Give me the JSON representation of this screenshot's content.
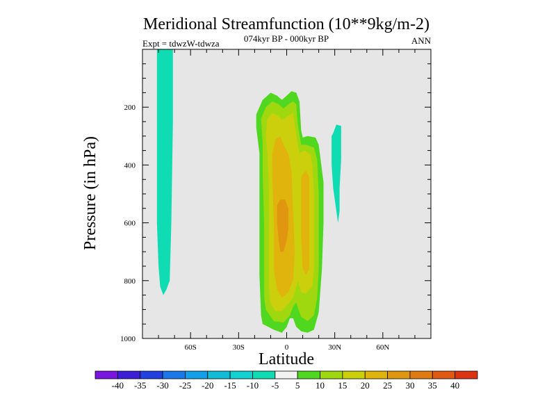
{
  "chart_data": {
    "type": "contour",
    "title": "Meridional Streamfunction (10**9kg/m-2)",
    "subtitle_center": "074kyr BP - 000kyr BP",
    "subtitle_left": "Expt = tdwzW-tdwza",
    "subtitle_right": "ANN",
    "xlabel": "Latitude",
    "ylabel": "Pressure (in hPa)",
    "xlim": [
      -90,
      90
    ],
    "ylim": [
      1000,
      0
    ],
    "y_inverted": true,
    "x_ticks": [
      {
        "value": -60,
        "label": "60S"
      },
      {
        "value": -30,
        "label": "30S"
      },
      {
        "value": 0,
        "label": "0"
      },
      {
        "value": 30,
        "label": "30N"
      },
      {
        "value": 60,
        "label": "60N"
      }
    ],
    "y_ticks": [
      {
        "value": 200,
        "label": "200"
      },
      {
        "value": 400,
        "label": "400"
      },
      {
        "value": 600,
        "label": "600"
      },
      {
        "value": 800,
        "label": "800"
      },
      {
        "value": 1000,
        "label": "1000"
      }
    ],
    "background_color": "#e6e6e6",
    "colorbar": {
      "colors": [
        "#7a16e0",
        "#3c1ed6",
        "#2040e0",
        "#1a78e8",
        "#14a0e8",
        "#10bcd8",
        "#14d2d2",
        "#10dcb4",
        "#f2f2f2",
        "#50d820",
        "#a0d810",
        "#ccd00c",
        "#e0b40c",
        "#e09610",
        "#e07a12",
        "#e05a14",
        "#dc3412"
      ],
      "labels": [
        "-40",
        "-35",
        "-30",
        "-25",
        "-20",
        "-15",
        "-10",
        "-5",
        "5",
        "10",
        "15",
        "20",
        "25",
        "30",
        "35",
        "40"
      ]
    },
    "contours": [
      {
        "level_band": "-10 to -5",
        "color": "#10dcb4",
        "description": "negative cell",
        "polygon": [
          [
            -81,
            0
          ],
          [
            -71,
            0
          ],
          [
            -71,
            40
          ],
          [
            -71,
            250
          ],
          [
            -72,
            600
          ],
          [
            -73,
            800
          ],
          [
            -75,
            830
          ],
          [
            -77,
            850
          ],
          [
            -79,
            820
          ],
          [
            -80,
            750
          ],
          [
            -81,
            600
          ],
          [
            -81,
            300
          ]
        ]
      },
      {
        "level_band": "-10 to -5",
        "color": "#10dcb4",
        "polygon": [
          [
            28,
            300
          ],
          [
            29,
            290
          ],
          [
            31,
            260
          ],
          [
            34,
            265
          ],
          [
            34,
            300
          ],
          [
            34,
            380
          ],
          [
            33,
            480
          ],
          [
            33,
            560
          ],
          [
            32,
            600
          ],
          [
            31,
            560
          ],
          [
            29,
            480
          ],
          [
            28,
            400
          ]
        ]
      },
      {
        "level_band": "5 to 10",
        "color": "#50d820",
        "polygon": [
          [
            -19,
            225
          ],
          [
            -15,
            175
          ],
          [
            -10,
            150
          ],
          [
            -6,
            160
          ],
          [
            -3,
            175
          ],
          [
            0,
            160
          ],
          [
            3,
            145
          ],
          [
            6,
            150
          ],
          [
            8,
            180
          ],
          [
            9,
            280
          ],
          [
            10,
            305
          ],
          [
            13,
            300
          ],
          [
            18,
            305
          ],
          [
            20,
            330
          ],
          [
            23,
            460
          ],
          [
            23,
            600
          ],
          [
            22,
            760
          ],
          [
            20,
            910
          ],
          [
            17,
            970
          ],
          [
            13,
            980
          ],
          [
            9,
            975
          ],
          [
            6,
            960
          ],
          [
            4,
            930
          ],
          [
            2,
            930
          ],
          [
            0,
            960
          ],
          [
            -3,
            980
          ],
          [
            -8,
            970
          ],
          [
            -15,
            950
          ],
          [
            -16,
            920
          ],
          [
            -17,
            780
          ],
          [
            -17,
            600
          ],
          [
            -17,
            360
          ],
          [
            -19,
            270
          ]
        ]
      },
      {
        "level_band": "10 to 15",
        "color": "#a0d810",
        "polygon": [
          [
            -16,
            240
          ],
          [
            -13,
            200
          ],
          [
            -9,
            180
          ],
          [
            -5,
            190
          ],
          [
            -2,
            205
          ],
          [
            1,
            190
          ],
          [
            4,
            180
          ],
          [
            6,
            190
          ],
          [
            7,
            260
          ],
          [
            9,
            330
          ],
          [
            12,
            330
          ],
          [
            17,
            340
          ],
          [
            19,
            380
          ],
          [
            20,
            500
          ],
          [
            20,
            620
          ],
          [
            20,
            760
          ],
          [
            19,
            860
          ],
          [
            17,
            920
          ],
          [
            13,
            940
          ],
          [
            9,
            925
          ],
          [
            7,
            895
          ],
          [
            6,
            875
          ],
          [
            4,
            890
          ],
          [
            2,
            920
          ],
          [
            -2,
            945
          ],
          [
            -8,
            940
          ],
          [
            -13,
            900
          ],
          [
            -14,
            860
          ],
          [
            -14,
            760
          ],
          [
            -14,
            620
          ],
          [
            -15,
            420
          ],
          [
            -15,
            320
          ]
        ]
      },
      {
        "level_band": "15 to 20",
        "color": "#ccd00c",
        "polygon": [
          [
            -13,
            300
          ],
          [
            -12,
            240
          ],
          [
            -9,
            220
          ],
          [
            -5,
            230
          ],
          [
            -3,
            245
          ],
          [
            1,
            230
          ],
          [
            4,
            220
          ],
          [
            6,
            300
          ],
          [
            8,
            360
          ],
          [
            11,
            350
          ],
          [
            15,
            365
          ],
          [
            16,
            400
          ],
          [
            17,
            500
          ],
          [
            17,
            620
          ],
          [
            17,
            760
          ],
          [
            16,
            820
          ],
          [
            12,
            845
          ],
          [
            9,
            840
          ],
          [
            7,
            800
          ],
          [
            4,
            860
          ],
          [
            1,
            880
          ],
          [
            -3,
            905
          ],
          [
            -7,
            905
          ],
          [
            -10,
            880
          ],
          [
            -11,
            820
          ],
          [
            -11,
            660
          ],
          [
            -11,
            480
          ],
          [
            -12,
            360
          ]
        ]
      },
      {
        "level_band": "20 to 25",
        "color": "#e0b40c",
        "polygon": [
          [
            -9,
            360
          ],
          [
            -7,
            310
          ],
          [
            -4,
            300
          ],
          [
            -2,
            330
          ],
          [
            1,
            360
          ],
          [
            3,
            420
          ],
          [
            4,
            560
          ],
          [
            5,
            700
          ],
          [
            4,
            800
          ],
          [
            1,
            840
          ],
          [
            -3,
            860
          ],
          [
            -6,
            830
          ],
          [
            -8,
            760
          ],
          [
            -8,
            600
          ],
          [
            -9,
            450
          ]
        ]
      },
      {
        "level_band": "20 to 25",
        "color": "#e0b40c",
        "polygon": [
          [
            9,
            440
          ],
          [
            12,
            420
          ],
          [
            14,
            440
          ],
          [
            14,
            560
          ],
          [
            14,
            650
          ],
          [
            14,
            760
          ],
          [
            12,
            780
          ],
          [
            10,
            760
          ],
          [
            9,
            650
          ],
          [
            9,
            550
          ]
        ]
      },
      {
        "level_band": "25 to 30",
        "color": "#e09610",
        "polygon": [
          [
            -6,
            540
          ],
          [
            -4,
            520
          ],
          [
            -1,
            520
          ],
          [
            1,
            550
          ],
          [
            1,
            620
          ],
          [
            0,
            660
          ],
          [
            -2,
            700
          ],
          [
            -4,
            700
          ],
          [
            -5,
            660
          ],
          [
            -6,
            600
          ]
        ]
      }
    ]
  }
}
